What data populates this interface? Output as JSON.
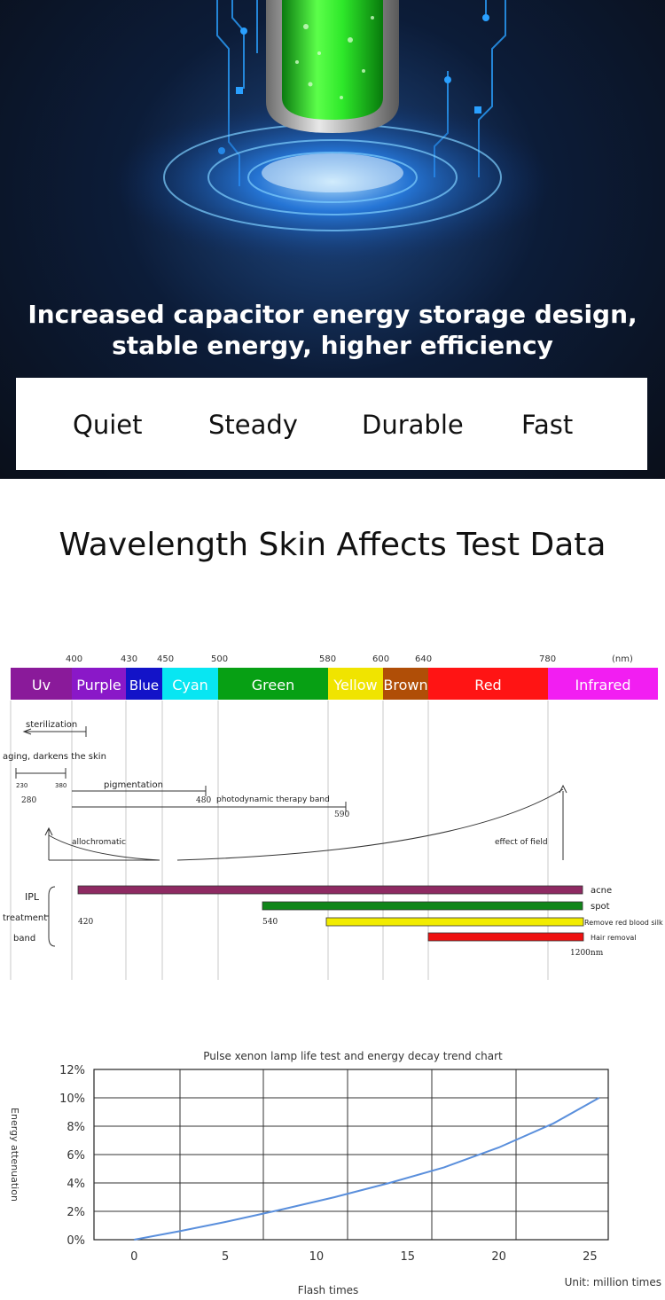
{
  "hero": {
    "line1": "Increased capacitor energy storage design,",
    "line2": "stable energy, higher efficiency"
  },
  "features": [
    "Quiet",
    "Steady",
    "Durable",
    "Fast"
  ],
  "section_title": "Wavelength Skin Affects Test Data",
  "spectrum": {
    "unit": "(nm)",
    "wavelengths": [
      "400",
      "430",
      "450",
      "500",
      "580",
      "600",
      "640",
      "780"
    ],
    "bands": [
      {
        "label": "Uv",
        "color": "#8a1a9a"
      },
      {
        "label": "Purple",
        "color": "#8a18c8"
      },
      {
        "label": "Blue",
        "color": "#1313c8"
      },
      {
        "label": "Cyan",
        "color": "#08e6f2"
      },
      {
        "label": "Green",
        "color": "#07a014"
      },
      {
        "label": "Yellow",
        "color": "#f0e400"
      },
      {
        "label": "Brown",
        "color": "#b04e07"
      },
      {
        "label": "Red",
        "color": "#ff1414"
      },
      {
        "label": "Infrared",
        "color": "#f21ef2"
      }
    ],
    "effects": {
      "sterilization": "sterilization",
      "aging": "aging, darkens the skin",
      "num_230": "230",
      "num_380": "380",
      "num_280": "280",
      "pigmentation": "pigmentation",
      "num_480": "480",
      "photodynamic": "photodynamic therapy band",
      "num_590": "590",
      "allochromatic": "allochromatic",
      "effect_of_field": "effect of field"
    },
    "ipl": {
      "label_ipl": "IPL",
      "label_treatment": "treatment",
      "label_band": "band",
      "num_420": "420",
      "num_540": "540",
      "num_1200": "1200nm",
      "bars": [
        {
          "label": "acne",
          "color": "#8e2a62"
        },
        {
          "label": "spot",
          "color": "#10861a"
        },
        {
          "label": "Remove red blood silk",
          "color": "#f2ec00"
        },
        {
          "label": "Hair removal",
          "color": "#ee1111"
        }
      ]
    }
  },
  "chart_data": {
    "type": "line",
    "title": "Pulse xenon lamp life test and energy decay trend chart",
    "xlabel": "Flash times",
    "ylabel": "Energy attenuation",
    "unit_note": "Unit: million times",
    "x_ticks": [
      "0",
      "5",
      "10",
      "15",
      "20",
      "25"
    ],
    "y_ticks": [
      "0%",
      "2%",
      "4%",
      "6%",
      "8%",
      "10%",
      "12%"
    ],
    "xlim": [
      -2.2,
      26
    ],
    "ylim": [
      0,
      12
    ],
    "grid": true,
    "line_color": "#5a8fdc",
    "series": [
      {
        "x": [
          0,
          2.5,
          5,
          8,
          11,
          14,
          17,
          20,
          23,
          25.5
        ],
        "y": [
          0,
          0.6,
          1.25,
          2.1,
          3.0,
          4.0,
          5.1,
          6.5,
          8.2,
          10.0
        ]
      }
    ]
  }
}
